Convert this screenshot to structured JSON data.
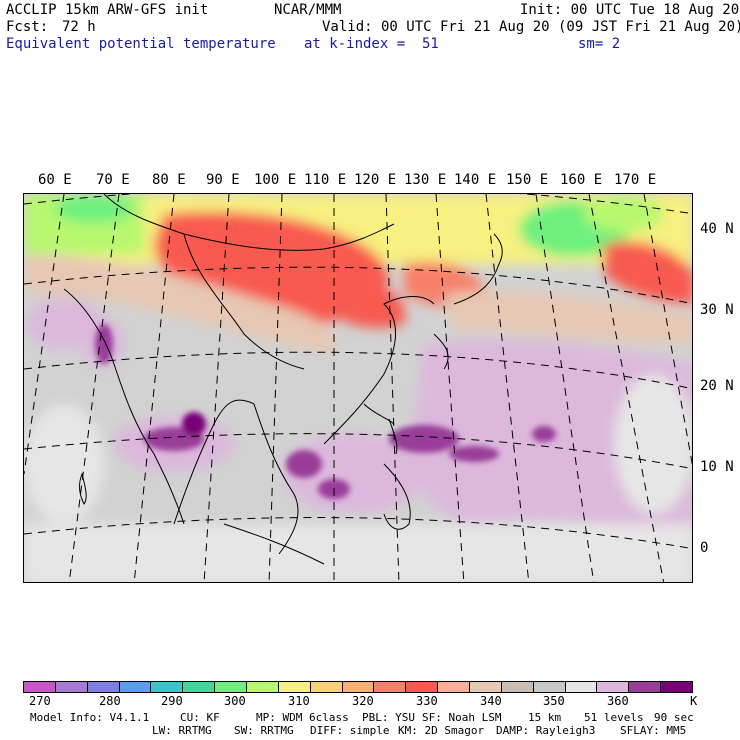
{
  "header": {
    "model": "ACCLIP 15km ARW-GFS init",
    "center": "NCAR/MMM",
    "init": "Init: 00 UTC Tue 18 Aug 20",
    "fcst_label": "Fcst:",
    "fcst_value": "72 h",
    "valid": "Valid: 00 UTC Fri 21 Aug 20 (09 JST Fri 21 Aug 20)",
    "field": "Equivalent potential temperature",
    "level": "at k-index =  51",
    "smooth": "sm= 2"
  },
  "map": {
    "lon_labels": [
      "60 E",
      "70 E",
      "80 E",
      "90 E",
      "100 E",
      "110 E",
      "120 E",
      "130 E",
      "140 E",
      "150 E",
      "160 E",
      "170 E"
    ],
    "lat_labels": [
      "40 N",
      "30 N",
      "20 N",
      "10 N",
      "0"
    ]
  },
  "colorbar": {
    "colors": [
      "#c856c8",
      "#a77ad4",
      "#7f7fe0",
      "#5a9ef0",
      "#36c8c8",
      "#40d89a",
      "#6ef07e",
      "#b8f86e",
      "#f8f080",
      "#f8d07a",
      "#f8b070",
      "#f8806a",
      "#f85a50",
      "#f8b098",
      "#e6c8b4",
      "#c8beb4",
      "#c8c8c8",
      "#e6e6e6",
      "#dcb8dc",
      "#9a3c9a",
      "#780078"
    ],
    "labels": [
      "270",
      "280",
      "290",
      "300",
      "310",
      "320",
      "330",
      "340",
      "350",
      "360"
    ],
    "unit": "K"
  },
  "model_info": {
    "line1": [
      "Model Info: V4.1.1",
      "CU: KF",
      "MP: WDM 6class",
      "PBL: YSU",
      "SF: Noah LSM",
      "15 km",
      "51 levels",
      "90 sec"
    ],
    "line2": [
      "LW: RRTMG",
      "SW: RRTMG",
      "DIFF: simple",
      "KM: 2D Smagor",
      "DAMP: Rayleigh3",
      "SFLAY: MM5"
    ]
  }
}
